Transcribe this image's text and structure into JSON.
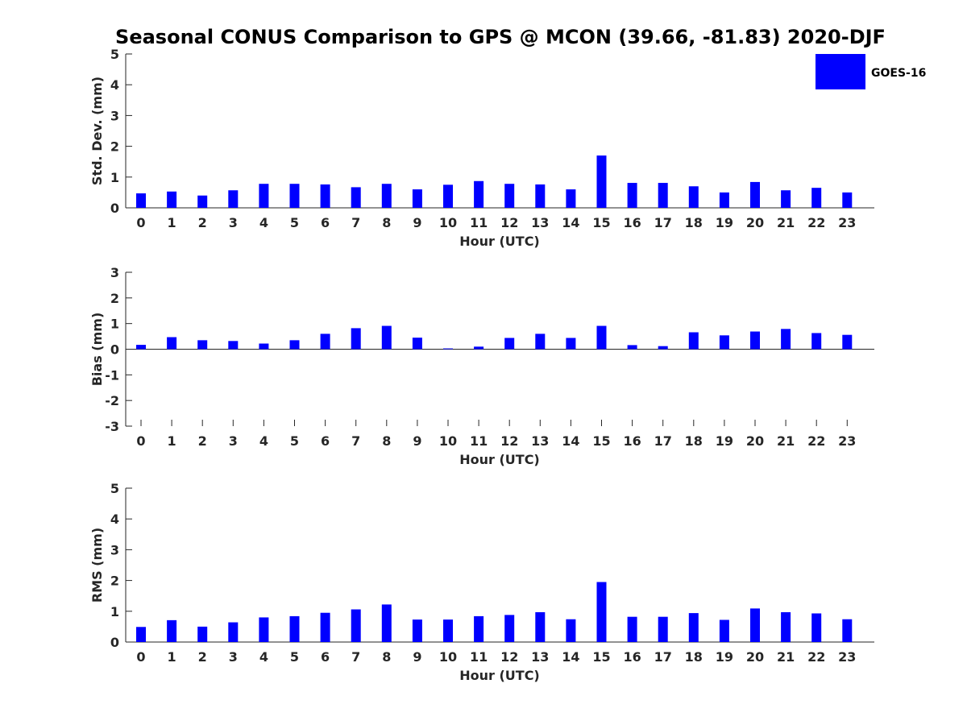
{
  "title": "Seasonal CONUS Comparison to GPS @ MCON (39.66, -81.83) 2020-DJF",
  "legend": {
    "placement": "top-right",
    "label": "GOES-16"
  },
  "colors": {
    "bar": "#0000ff",
    "axis": "#262626"
  },
  "chart_data": [
    {
      "type": "bar",
      "xlabel": "Hour (UTC)",
      "ylabel": "Std. Dev. (mm)",
      "categories": [
        "0",
        "1",
        "2",
        "3",
        "4",
        "5",
        "6",
        "7",
        "8",
        "9",
        "10",
        "11",
        "12",
        "13",
        "14",
        "15",
        "16",
        "17",
        "18",
        "19",
        "20",
        "21",
        "22",
        "23"
      ],
      "series": [
        {
          "name": "GOES-16",
          "values": [
            0.47,
            0.53,
            0.4,
            0.57,
            0.78,
            0.78,
            0.76,
            0.67,
            0.78,
            0.6,
            0.75,
            0.87,
            0.78,
            0.76,
            0.6,
            1.7,
            0.81,
            0.81,
            0.7,
            0.5,
            0.84,
            0.57,
            0.65,
            0.5
          ]
        }
      ],
      "ylim": [
        0,
        5
      ],
      "yticks": [
        "0",
        "1",
        "2",
        "3",
        "4",
        "5"
      ],
      "grid": false
    },
    {
      "type": "bar",
      "xlabel": "Hour (UTC)",
      "ylabel": "Bias (mm)",
      "categories": [
        "0",
        "1",
        "2",
        "3",
        "4",
        "5",
        "6",
        "7",
        "8",
        "9",
        "10",
        "11",
        "12",
        "13",
        "14",
        "15",
        "16",
        "17",
        "18",
        "19",
        "20",
        "21",
        "22",
        "23"
      ],
      "series": [
        {
          "name": "GOES-16",
          "values": [
            0.17,
            0.47,
            0.35,
            0.32,
            0.22,
            0.35,
            0.6,
            0.82,
            0.91,
            0.45,
            0.03,
            0.1,
            0.44,
            0.6,
            0.44,
            0.91,
            0.16,
            0.12,
            0.66,
            0.54,
            0.69,
            0.79,
            0.63,
            0.56
          ]
        }
      ],
      "ylim": [
        -3,
        3
      ],
      "yticks": [
        "-3",
        "-2",
        "-1",
        "0",
        "1",
        "2",
        "3"
      ],
      "grid": false
    },
    {
      "type": "bar",
      "xlabel": "Hour (UTC)",
      "ylabel": "RMS (mm)",
      "categories": [
        "0",
        "1",
        "2",
        "3",
        "4",
        "5",
        "6",
        "7",
        "8",
        "9",
        "10",
        "11",
        "12",
        "13",
        "14",
        "15",
        "16",
        "17",
        "18",
        "19",
        "20",
        "21",
        "22",
        "23"
      ],
      "series": [
        {
          "name": "GOES-16",
          "values": [
            0.49,
            0.71,
            0.5,
            0.64,
            0.8,
            0.84,
            0.95,
            1.06,
            1.22,
            0.73,
            0.73,
            0.84,
            0.88,
            0.97,
            0.74,
            1.95,
            0.82,
            0.82,
            0.94,
            0.72,
            1.09,
            0.97,
            0.93,
            0.74
          ]
        }
      ],
      "ylim": [
        0,
        5
      ],
      "yticks": [
        "0",
        "1",
        "2",
        "3",
        "4",
        "5"
      ],
      "grid": false
    }
  ]
}
